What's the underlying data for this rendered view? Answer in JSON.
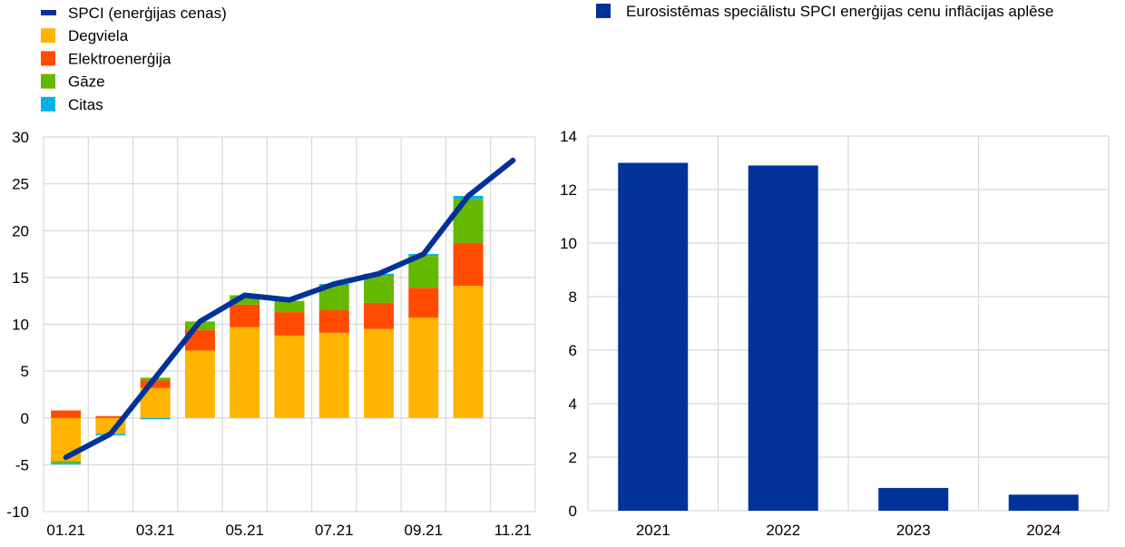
{
  "colors": {
    "line": "#003299",
    "fuel": "#ffb400",
    "electricity": "#ff4b00",
    "gas": "#65b800",
    "other": "#00b1ea",
    "bar": "#003299",
    "grid": "#d9d9d9"
  },
  "chart_data": [
    {
      "type": "bar",
      "subtype": "stacked-bar-with-line",
      "legend_placement": "top-left",
      "grid": true,
      "ylim": [
        -10,
        30
      ],
      "yticks": [
        -10,
        -5,
        0,
        5,
        10,
        15,
        20,
        25,
        30
      ],
      "categories": [
        "01.21",
        "02.21",
        "03.21",
        "04.21",
        "05.21",
        "06.21",
        "07.21",
        "08.21",
        "09.21",
        "10.21",
        "11.21"
      ],
      "xtick_labels": [
        "01.21",
        "03.21",
        "05.21",
        "07.21",
        "09.21",
        "11.21"
      ],
      "legend": [
        "SPCI (enerģijas cenas)",
        "Degviela",
        "Elektroenerģija",
        "Gāze",
        "Citas"
      ],
      "series": [
        {
          "name": "Degviela",
          "color_key": "fuel",
          "values": [
            -4.6,
            -1.7,
            3.2,
            7.2,
            9.7,
            8.8,
            9.1,
            9.5,
            10.7,
            14.1,
            null
          ]
        },
        {
          "name": "Elektroenerģija",
          "color_key": "electricity",
          "values": [
            0.8,
            0.2,
            0.8,
            2.2,
            2.4,
            2.5,
            2.4,
            2.8,
            3.2,
            4.6,
            null
          ]
        },
        {
          "name": "Gāze",
          "color_key": "gas",
          "values": [
            -0.2,
            0,
            0.3,
            0.9,
            1.0,
            1.2,
            2.7,
            3.0,
            3.4,
            4.7,
            null
          ]
        },
        {
          "name": "Citas",
          "color_key": "other",
          "values": [
            -0.15,
            -0.15,
            -0.1,
            0,
            0,
            0,
            0.1,
            0.1,
            0.2,
            0.3,
            null
          ]
        }
      ],
      "line": {
        "name": "SPCI (enerģijas cenas)",
        "values": [
          -4.2,
          -1.7,
          4.3,
          10.3,
          13.1,
          12.6,
          14.3,
          15.4,
          17.5,
          23.7,
          27.5
        ]
      }
    },
    {
      "type": "bar",
      "legend_placement": "top",
      "grid": true,
      "ylim": [
        0,
        14
      ],
      "yticks": [
        0,
        2,
        4,
        6,
        8,
        10,
        12,
        14
      ],
      "categories": [
        "2021",
        "2022",
        "2023",
        "2024"
      ],
      "legend": [
        "Eurosistēmas speciālistu SPCI enerģijas cenu inflācijas aplēse"
      ],
      "series": [
        {
          "name": "Eurosistēmas speciālistu SPCI enerģijas cenu inflācijas aplēse",
          "values": [
            13.0,
            12.9,
            0.85,
            0.6
          ]
        }
      ]
    }
  ]
}
